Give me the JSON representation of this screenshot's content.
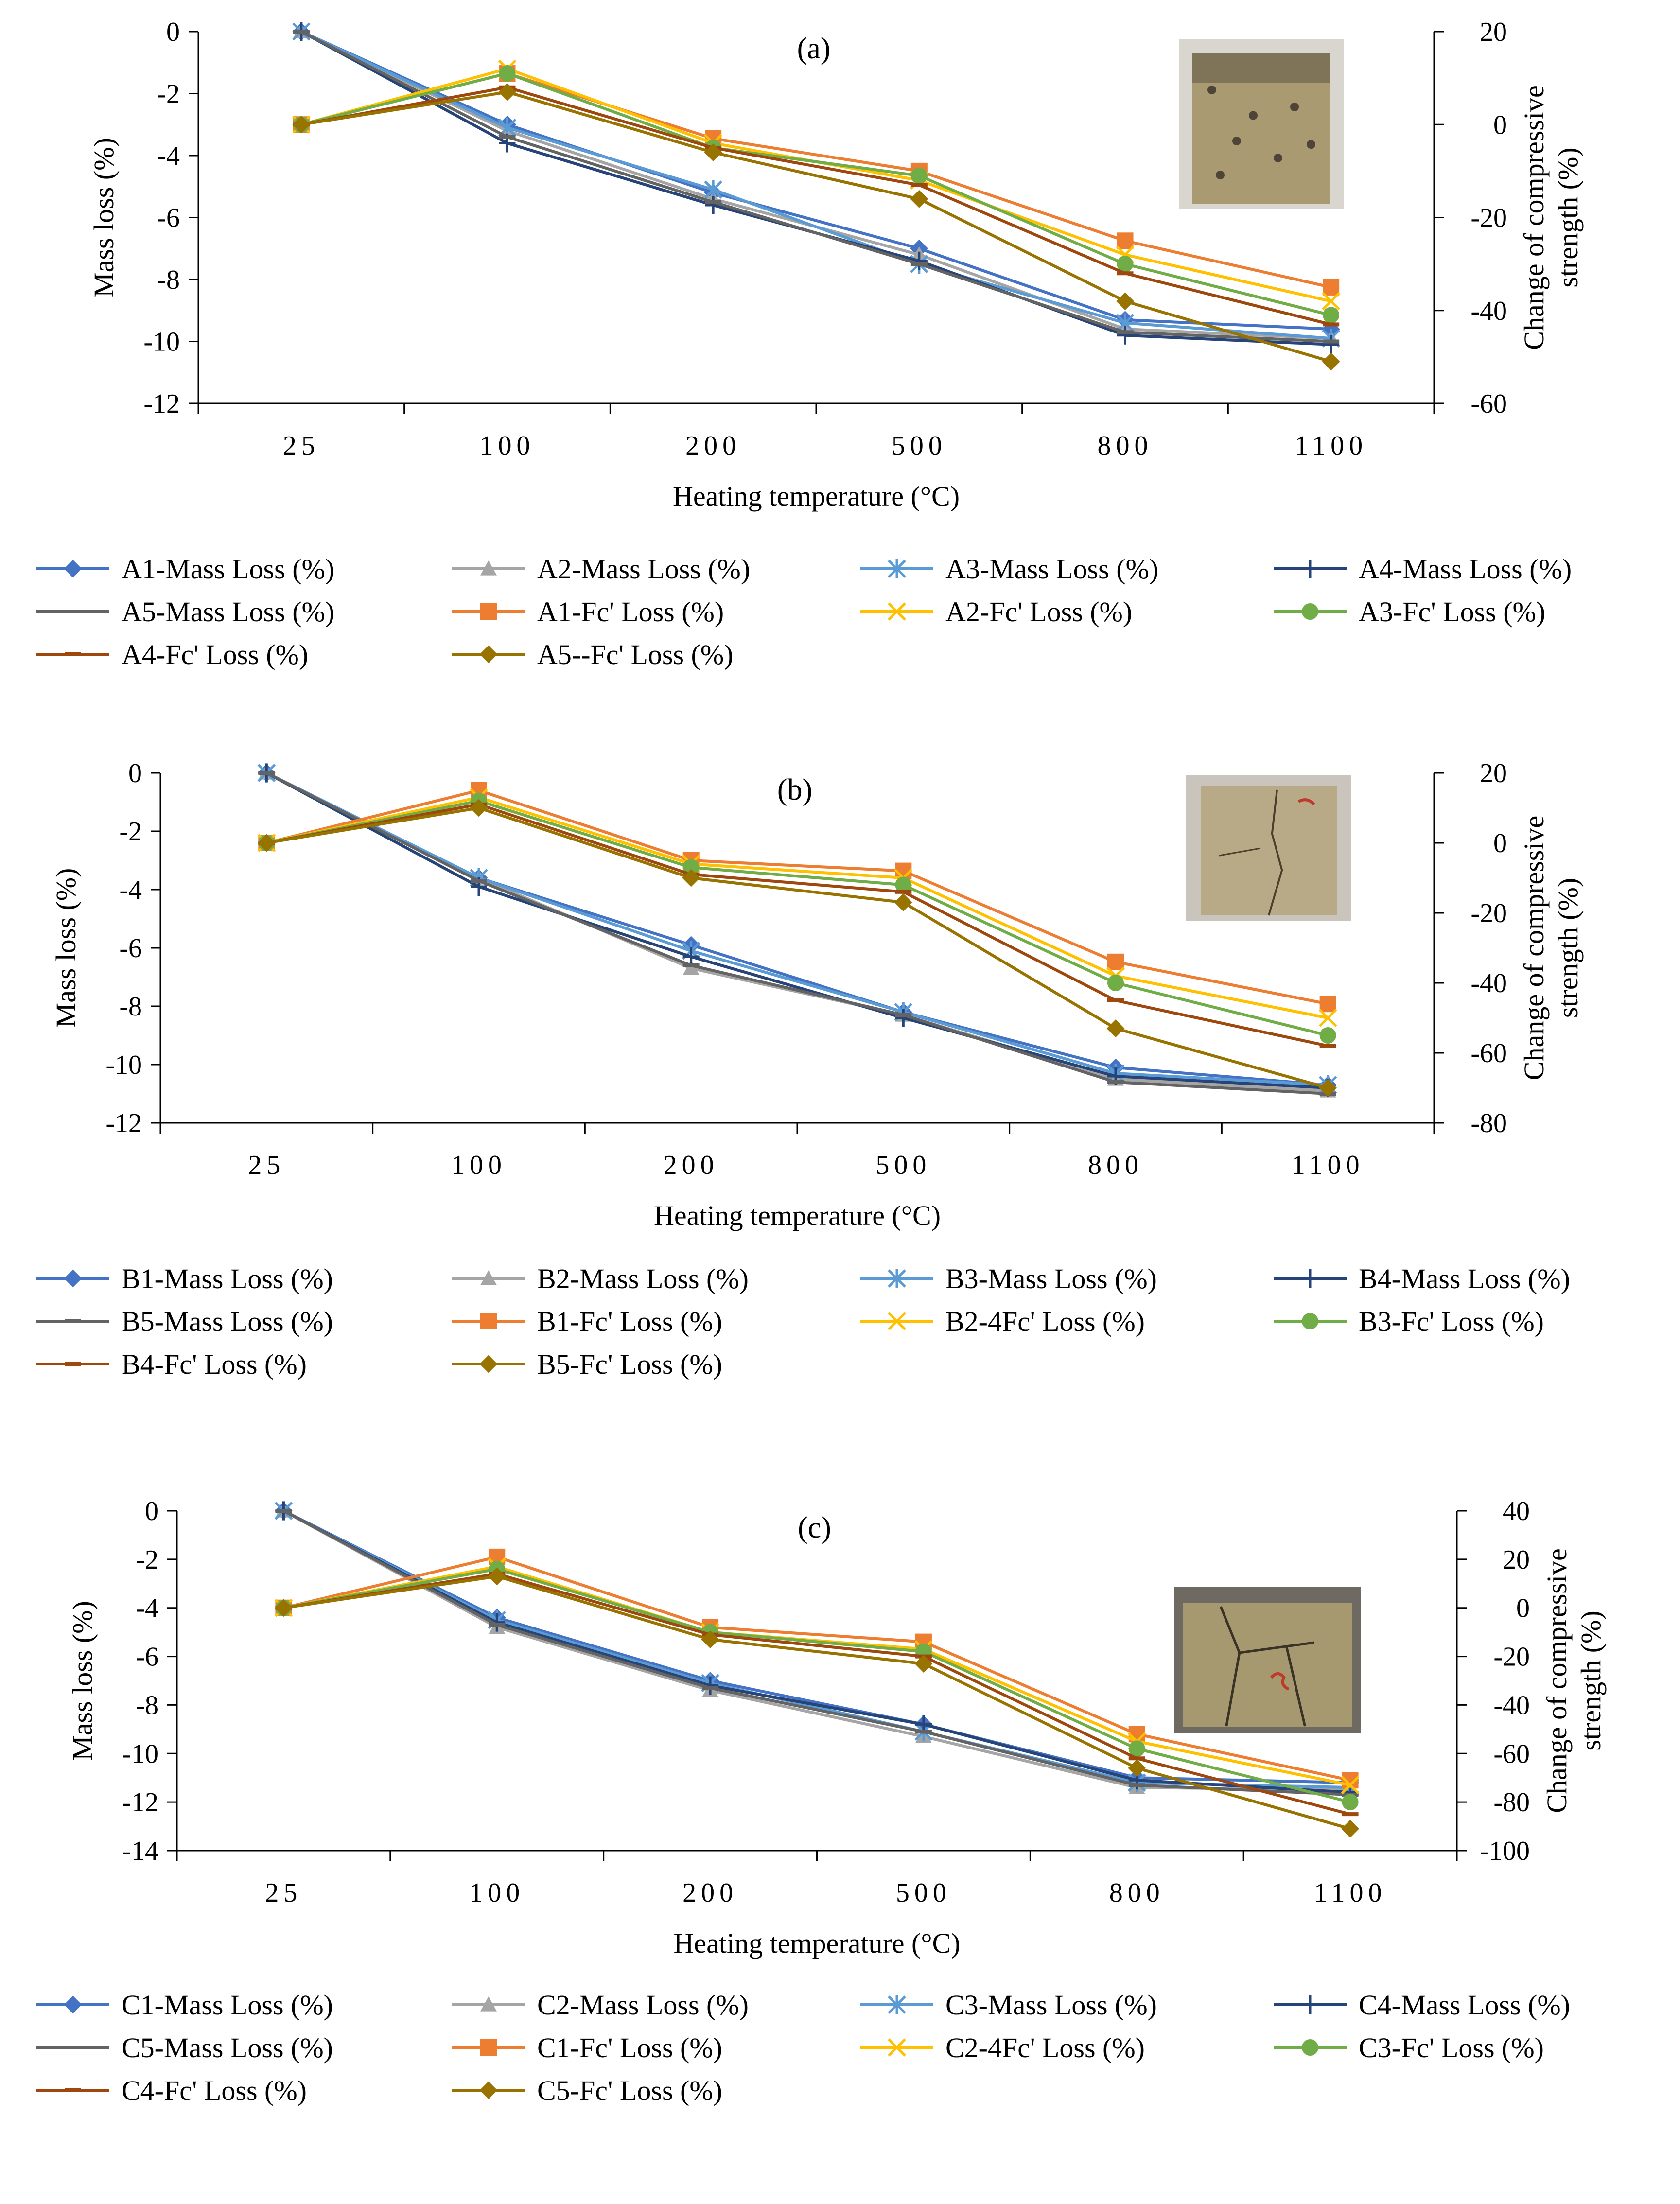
{
  "chart_data": [
    {
      "type": "line",
      "title": "(a)",
      "xlabel": "Heating temperature (°C)",
      "ylabel": "Mass loss (%)",
      "y2label_lines": [
        "Change of compressive",
        "strength (%)"
      ],
      "categories": [
        "25",
        "100",
        "200",
        "500",
        "800",
        "1100"
      ],
      "ylim": [
        -12,
        0
      ],
      "yticks": [
        "0",
        "-2",
        "-4",
        "-6",
        "-8",
        "-10",
        "-12"
      ],
      "y2lim": [
        -60,
        20
      ],
      "y2ticks": [
        "20",
        "0",
        "-20",
        "-40",
        "-60"
      ],
      "photo_style": "a",
      "series": [
        {
          "name": "A1-Mass Loss (%)",
          "axis": "left",
          "color": "#4472C4",
          "marker": "diamond",
          "values": [
            0,
            -3.0,
            -5.2,
            -7.0,
            -9.3,
            -9.6
          ]
        },
        {
          "name": "A2-Mass Loss (%)",
          "axis": "left",
          "color": "#A5A5A5",
          "marker": "triangle",
          "values": [
            0,
            -3.2,
            -5.4,
            -7.2,
            -9.6,
            -9.9
          ]
        },
        {
          "name": "A3-Mass Loss (%)",
          "axis": "left",
          "color": "#5B9BD5",
          "marker": "star",
          "values": [
            0,
            -3.1,
            -5.1,
            -7.5,
            -9.4,
            -9.9
          ]
        },
        {
          "name": "A4-Mass Loss (%)",
          "axis": "left",
          "color": "#264478",
          "marker": "plus",
          "values": [
            0,
            -3.6,
            -5.6,
            -7.4,
            -9.8,
            -10.1
          ]
        },
        {
          "name": "A5-Mass Loss (%)",
          "axis": "left",
          "color": "#636363",
          "marker": "dash",
          "values": [
            0,
            -3.4,
            -5.5,
            -7.5,
            -9.7,
            -10.0
          ]
        },
        {
          "name": "A1-Fc' Loss (%)",
          "axis": "right",
          "color": "#ED7D31",
          "marker": "square",
          "values": [
            0,
            11,
            -3,
            -10,
            -25,
            -35
          ]
        },
        {
          "name": "A2-Fc' Loss (%)",
          "axis": "right",
          "color": "#FFC000",
          "marker": "x",
          "values": [
            0,
            12,
            -4,
            -12,
            -28,
            -38
          ]
        },
        {
          "name": "A3-Fc' Loss (%)",
          "axis": "right",
          "color": "#70AD47",
          "marker": "circle",
          "values": [
            0,
            11,
            -5,
            -11,
            -30,
            -41
          ]
        },
        {
          "name": "A4-Fc' Loss (%)",
          "axis": "right",
          "color": "#9E480E",
          "marker": "dash",
          "values": [
            0,
            8,
            -5,
            -13,
            -32,
            -43
          ]
        },
        {
          "name": "A5--Fc' Loss (%)",
          "axis": "right",
          "color": "#997300",
          "marker": "diamond",
          "values": [
            0,
            7,
            -6,
            -16,
            -38,
            -51
          ]
        }
      ]
    },
    {
      "type": "line",
      "title": "(b)",
      "xlabel": "Heating temperature (°C)",
      "ylabel": "Mass loss (%)",
      "y2label_lines": [
        "Change of compressive",
        "strength (%)"
      ],
      "categories": [
        "25",
        "100",
        "200",
        "500",
        "800",
        "1100"
      ],
      "ylim": [
        -12,
        0
      ],
      "yticks": [
        "0",
        "-2",
        "-4",
        "-6",
        "-8",
        "-10",
        "-12"
      ],
      "y2lim": [
        -80,
        20
      ],
      "y2ticks": [
        "20",
        "0",
        "-20",
        "-40",
        "-60",
        "-80"
      ],
      "photo_style": "b",
      "series": [
        {
          "name": "B1-Mass Loss (%)",
          "axis": "left",
          "color": "#4472C4",
          "marker": "diamond",
          "values": [
            0,
            -3.6,
            -5.9,
            -8.2,
            -10.1,
            -10.7
          ]
        },
        {
          "name": "B2-Mass Loss (%)",
          "axis": "left",
          "color": "#A5A5A5",
          "marker": "triangle",
          "values": [
            0,
            -3.6,
            -6.7,
            -8.3,
            -10.5,
            -10.9
          ]
        },
        {
          "name": "B3-Mass Loss (%)",
          "axis": "left",
          "color": "#5B9BD5",
          "marker": "star",
          "values": [
            0,
            -3.6,
            -6.1,
            -8.2,
            -10.3,
            -10.7
          ]
        },
        {
          "name": "B4-Mass Loss (%)",
          "axis": "left",
          "color": "#264478",
          "marker": "plus",
          "values": [
            0,
            -3.9,
            -6.3,
            -8.4,
            -10.4,
            -10.8
          ]
        },
        {
          "name": "B5-Mass Loss (%)",
          "axis": "left",
          "color": "#636363",
          "marker": "dash",
          "values": [
            0,
            -3.7,
            -6.6,
            -8.3,
            -10.6,
            -11.0
          ]
        },
        {
          "name": "B1-Fc' Loss (%)",
          "axis": "right",
          "color": "#ED7D31",
          "marker": "square",
          "values": [
            0,
            15,
            -5,
            -8,
            -34,
            -46
          ]
        },
        {
          "name": "B2-4Fc' Loss (%)",
          "axis": "right",
          "color": "#FFC000",
          "marker": "x",
          "values": [
            0,
            13,
            -6,
            -10,
            -38,
            -50
          ]
        },
        {
          "name": "B3-Fc' Loss (%)",
          "axis": "right",
          "color": "#70AD47",
          "marker": "circle",
          "values": [
            0,
            12,
            -7,
            -12,
            -40,
            -55
          ]
        },
        {
          "name": "B4-Fc' Loss (%)",
          "axis": "right",
          "color": "#9E480E",
          "marker": "dash",
          "values": [
            0,
            11,
            -9,
            -14,
            -45,
            -58
          ]
        },
        {
          "name": "B5-Fc' Loss (%)",
          "axis": "right",
          "color": "#997300",
          "marker": "diamond",
          "values": [
            0,
            10,
            -10,
            -17,
            -53,
            -70
          ]
        }
      ]
    },
    {
      "type": "line",
      "title": "(c)",
      "xlabel": "Heating temperature (°C)",
      "ylabel": "Mass loss (%)",
      "y2label_lines": [
        "Change of compressive",
        "strength (%)"
      ],
      "categories": [
        "25",
        "100",
        "200",
        "500",
        "800",
        "1100"
      ],
      "ylim": [
        -14,
        0
      ],
      "yticks": [
        "0",
        "-2",
        "-4",
        "-6",
        "-8",
        "-10",
        "-12",
        "-14"
      ],
      "y2lim": [
        -100,
        40
      ],
      "y2ticks": [
        "40",
        "20",
        "0",
        "-20",
        "-40",
        "-60",
        "-80",
        "-100"
      ],
      "photo_style": "c",
      "series": [
        {
          "name": "C1-Mass Loss (%)",
          "axis": "left",
          "color": "#4472C4",
          "marker": "diamond",
          "values": [
            0,
            -4.4,
            -7.0,
            -8.8,
            -11.0,
            -11.2
          ]
        },
        {
          "name": "C2-Mass Loss (%)",
          "axis": "left",
          "color": "#A5A5A5",
          "marker": "triangle",
          "values": [
            0,
            -4.8,
            -7.4,
            -9.3,
            -11.4,
            -11.5
          ]
        },
        {
          "name": "C3-Mass Loss (%)",
          "axis": "left",
          "color": "#5B9BD5",
          "marker": "star",
          "values": [
            0,
            -4.5,
            -7.1,
            -9.1,
            -11.2,
            -11.4
          ]
        },
        {
          "name": "C4-Mass Loss (%)",
          "axis": "left",
          "color": "#264478",
          "marker": "plus",
          "values": [
            0,
            -4.6,
            -7.2,
            -8.8,
            -11.1,
            -11.6
          ]
        },
        {
          "name": "C5-Mass Loss (%)",
          "axis": "left",
          "color": "#636363",
          "marker": "dash",
          "values": [
            0,
            -4.7,
            -7.3,
            -9.1,
            -11.3,
            -11.7
          ]
        },
        {
          "name": "C1-Fc' Loss (%)",
          "axis": "right",
          "color": "#ED7D31",
          "marker": "square",
          "values": [
            0,
            21,
            -8,
            -14,
            -52,
            -71
          ]
        },
        {
          "name": "C2-4Fc' Loss (%)",
          "axis": "right",
          "color": "#FFC000",
          "marker": "x",
          "values": [
            0,
            17,
            -10,
            -17,
            -55,
            -73
          ]
        },
        {
          "name": "C3-Fc' Loss (%)",
          "axis": "right",
          "color": "#70AD47",
          "marker": "circle",
          "values": [
            0,
            16,
            -10,
            -18,
            -58,
            -80
          ]
        },
        {
          "name": "C4-Fc' Loss (%)",
          "axis": "right",
          "color": "#9E480E",
          "marker": "dash",
          "values": [
            0,
            14,
            -11,
            -20,
            -62,
            -85
          ]
        },
        {
          "name": "C5-Fc' Loss (%)",
          "axis": "right",
          "color": "#997300",
          "marker": "diamond",
          "values": [
            0,
            13,
            -13,
            -23,
            -66,
            -91
          ]
        }
      ]
    }
  ]
}
